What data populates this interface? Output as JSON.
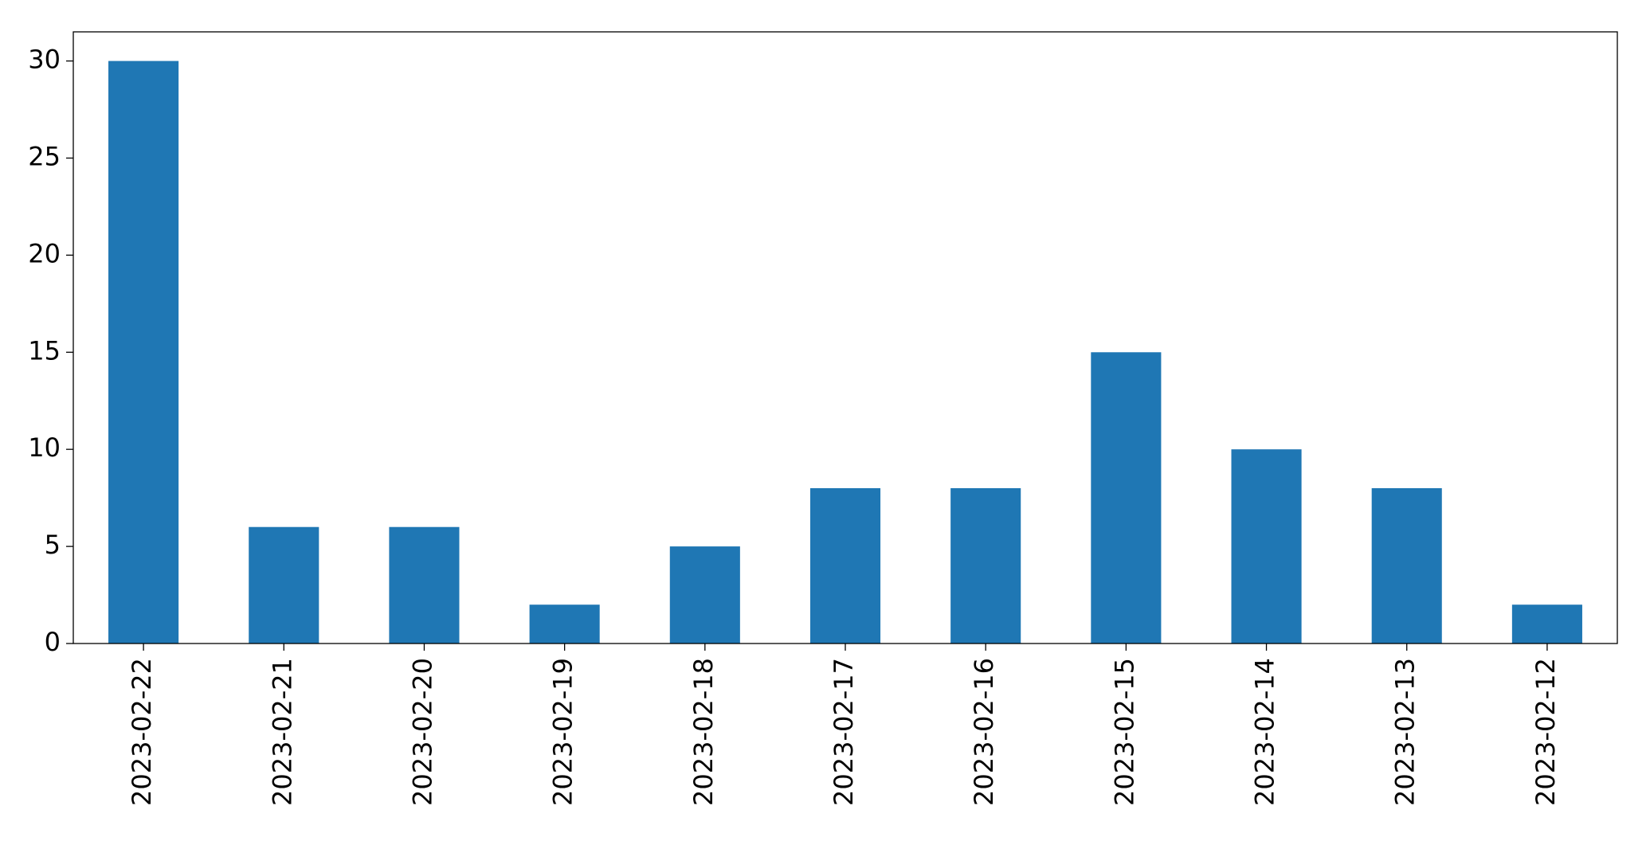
{
  "chart_data": {
    "type": "bar",
    "categories": [
      "2023-02-22",
      "2023-02-21",
      "2023-02-20",
      "2023-02-19",
      "2023-02-18",
      "2023-02-17",
      "2023-02-16",
      "2023-02-15",
      "2023-02-14",
      "2023-02-13",
      "2023-02-12"
    ],
    "values": [
      30,
      6,
      6,
      2,
      5,
      8,
      8,
      15,
      10,
      8,
      2
    ],
    "color": "#1f77b4",
    "ylim": [
      0,
      31.5
    ],
    "yticks": [
      0,
      5,
      10,
      15,
      20,
      25,
      30
    ],
    "grid": false
  }
}
